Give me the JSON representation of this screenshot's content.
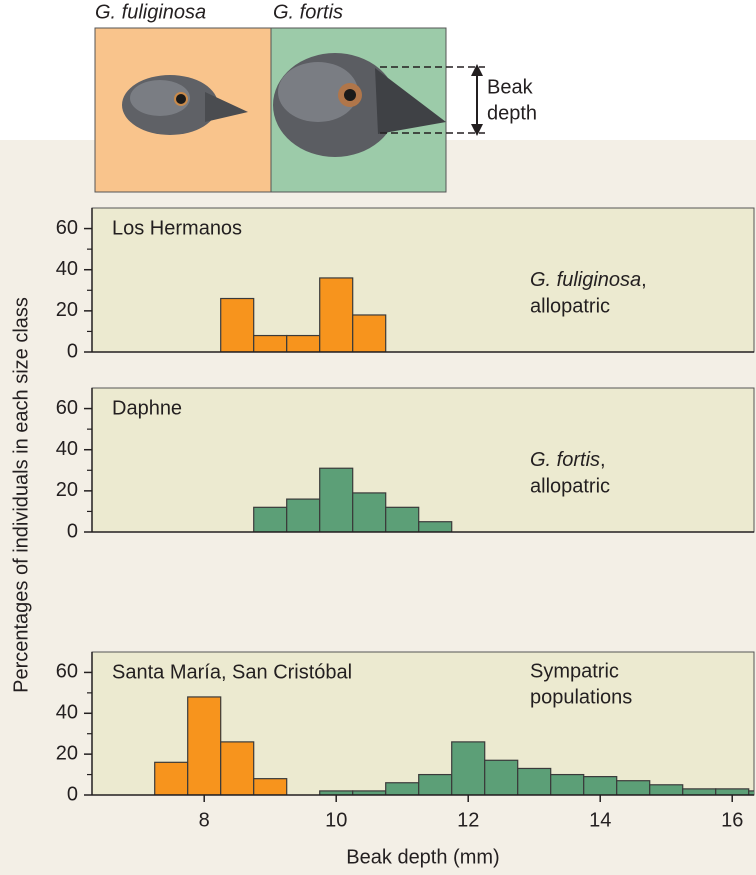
{
  "illustration": {
    "species": [
      "G. fuliginosa",
      "G. fortis"
    ],
    "measure": [
      "Beak",
      "depth"
    ]
  },
  "axis_labels": {
    "y": "Percentages of individuals in each size class",
    "x": "Beak depth (mm)"
  },
  "chart_data": [
    {
      "type": "histogram",
      "title": "Los Hermanos",
      "annotation": {
        "species": "G. fuliginosa",
        "suffix": ",",
        "text": "allopatric"
      },
      "xlim": [
        6.3,
        16.33
      ],
      "ylim": [
        0,
        70
      ],
      "yticks": [
        0,
        20,
        40,
        60
      ],
      "minor_yticks": [
        10,
        30,
        50
      ],
      "series": [
        {
          "color": "#f7941d",
          "bins": [
            8.25,
            8.75,
            9.25,
            9.75,
            10.25,
            10.75
          ],
          "values": [
            26,
            8,
            8,
            36,
            18
          ]
        }
      ]
    },
    {
      "type": "histogram",
      "title": "Daphne",
      "annotation": {
        "species": "G. fortis",
        "suffix": ",",
        "text": "allopatric"
      },
      "xlim": [
        6.3,
        16.33
      ],
      "ylim": [
        0,
        70
      ],
      "yticks": [
        0,
        20,
        40,
        60
      ],
      "minor_yticks": [
        10,
        30,
        50
      ],
      "series": [
        {
          "color": "#5c9f77",
          "bins": [
            8.75,
            9.25,
            9.75,
            10.25,
            10.75,
            11.25,
            11.75
          ],
          "values": [
            12,
            16,
            31,
            19,
            12,
            5
          ]
        }
      ]
    },
    {
      "type": "histogram",
      "title": "Santa María, San Cristóbal",
      "annotation": {
        "lines": [
          "Sympatric",
          "populations"
        ]
      },
      "xlim": [
        6.3,
        16.33
      ],
      "ylim": [
        0,
        70
      ],
      "yticks": [
        0,
        20,
        40,
        60
      ],
      "minor_yticks": [
        10,
        30,
        50
      ],
      "xticks": [
        8,
        10,
        12,
        14,
        16
      ],
      "series": [
        {
          "color": "#f7941d",
          "bins": [
            7.25,
            7.75,
            8.25,
            8.75,
            9.25
          ],
          "values": [
            16,
            48,
            26,
            8
          ]
        },
        {
          "color": "#5c9f77",
          "bins": [
            9.75,
            10.25,
            10.75,
            11.25,
            11.75,
            12.25,
            12.75,
            13.25,
            13.75,
            14.25,
            14.75,
            15.25,
            15.75,
            16.25,
            16.75
          ],
          "values": [
            2,
            2,
            6,
            10,
            26,
            17,
            13,
            10,
            9,
            7,
            5,
            3,
            3,
            2
          ]
        }
      ]
    }
  ]
}
